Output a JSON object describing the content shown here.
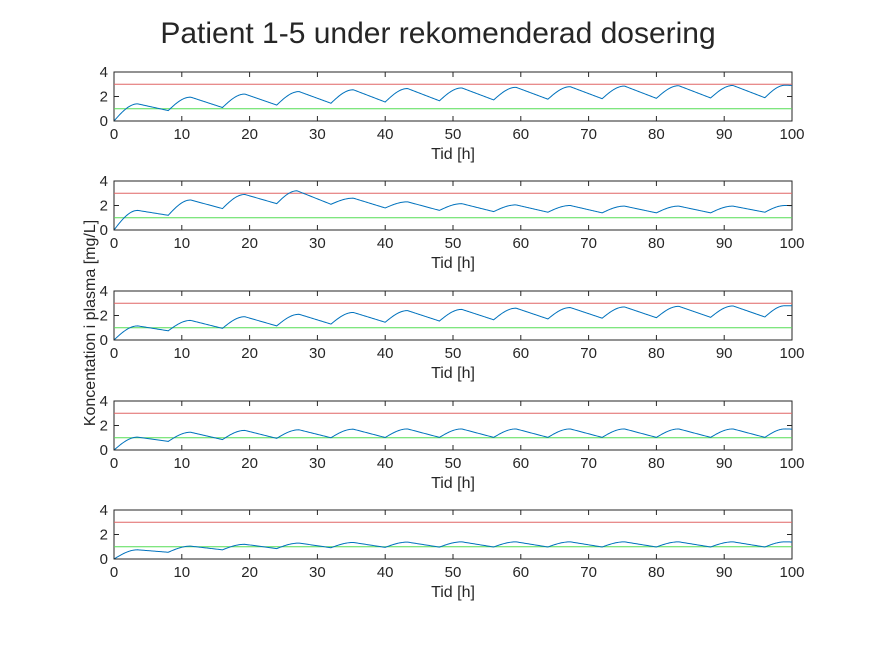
{
  "chart_data": {
    "type": "line",
    "title": "Patient 1-5 under rekomenderad dosering",
    "ylabel": "Koncentation i plasma [mg/L]",
    "xlabel": "Tid [h]",
    "xlim": [
      0,
      100
    ],
    "ylim": [
      0,
      4
    ],
    "xticks": [
      0,
      10,
      20,
      30,
      40,
      50,
      60,
      70,
      80,
      90,
      100
    ],
    "yticks": [
      0,
      2,
      4
    ],
    "dose_interval_h": 8,
    "grid": false,
    "legend": "none",
    "colors": {
      "concentration": "#0072BD",
      "upper_limit": "#E06666",
      "lower_limit": "#55DD55",
      "axes": "#262626"
    },
    "thresholds": {
      "upper": 3,
      "lower": 1
    },
    "subplots": [
      {
        "cycles": [
          {
            "start": 0,
            "trough": 0,
            "peak_t": 3.5,
            "peak": 1.4,
            "end": 0.85
          },
          {
            "start": 8,
            "trough": 0.85,
            "peak_t": 11.3,
            "peak": 1.95,
            "end": 1.1
          },
          {
            "start": 16,
            "trough": 1.1,
            "peak_t": 19.3,
            "peak": 2.2,
            "end": 1.3
          },
          {
            "start": 24,
            "trough": 1.3,
            "peak_t": 27.3,
            "peak": 2.4,
            "end": 1.45
          },
          {
            "start": 32,
            "trough": 1.45,
            "peak_t": 35.3,
            "peak": 2.55,
            "end": 1.55
          },
          {
            "start": 40,
            "trough": 1.55,
            "peak_t": 43.3,
            "peak": 2.65,
            "end": 1.65
          },
          {
            "start": 48,
            "trough": 1.65,
            "peak_t": 51.3,
            "peak": 2.7,
            "end": 1.72
          },
          {
            "start": 56,
            "trough": 1.72,
            "peak_t": 59.3,
            "peak": 2.75,
            "end": 1.78
          },
          {
            "start": 64,
            "trough": 1.78,
            "peak_t": 67.3,
            "peak": 2.8,
            "end": 1.82
          },
          {
            "start": 72,
            "trough": 1.82,
            "peak_t": 75.3,
            "peak": 2.85,
            "end": 1.85
          },
          {
            "start": 80,
            "trough": 1.85,
            "peak_t": 83.3,
            "peak": 2.88,
            "end": 1.88
          },
          {
            "start": 88,
            "trough": 1.88,
            "peak_t": 91.3,
            "peak": 2.9,
            "end": 1.9
          },
          {
            "start": 96,
            "trough": 1.9,
            "peak_t": 99.0,
            "peak": 2.92,
            "end": 2.85
          }
        ]
      },
      {
        "cycles": [
          {
            "start": 0,
            "trough": 0,
            "peak_t": 3.5,
            "peak": 1.6,
            "end": 1.2
          },
          {
            "start": 8,
            "trough": 1.2,
            "peak_t": 11.3,
            "peak": 2.45,
            "end": 1.75
          },
          {
            "start": 16,
            "trough": 1.75,
            "peak_t": 19.3,
            "peak": 2.9,
            "end": 2.15
          },
          {
            "start": 24,
            "trough": 2.15,
            "peak_t": 27.0,
            "peak": 3.2,
            "end": 2.1
          },
          {
            "start": 32,
            "trough": 2.1,
            "peak_t": 35.3,
            "peak": 2.6,
            "end": 1.8
          },
          {
            "start": 40,
            "trough": 1.8,
            "peak_t": 43.3,
            "peak": 2.3,
            "end": 1.6
          },
          {
            "start": 48,
            "trough": 1.6,
            "peak_t": 51.3,
            "peak": 2.15,
            "end": 1.5
          },
          {
            "start": 56,
            "trough": 1.5,
            "peak_t": 59.3,
            "peak": 2.05,
            "end": 1.45
          },
          {
            "start": 64,
            "trough": 1.45,
            "peak_t": 67.3,
            "peak": 2.0,
            "end": 1.4
          },
          {
            "start": 72,
            "trough": 1.4,
            "peak_t": 75.3,
            "peak": 1.95,
            "end": 1.4
          },
          {
            "start": 80,
            "trough": 1.4,
            "peak_t": 83.3,
            "peak": 1.95,
            "end": 1.4
          },
          {
            "start": 88,
            "trough": 1.4,
            "peak_t": 91.3,
            "peak": 1.95,
            "end": 1.45
          },
          {
            "start": 96,
            "trough": 1.45,
            "peak_t": 99.0,
            "peak": 2.0,
            "end": 1.95
          }
        ]
      },
      {
        "cycles": [
          {
            "start": 0,
            "trough": 0,
            "peak_t": 3.5,
            "peak": 1.15,
            "end": 0.75
          },
          {
            "start": 8,
            "trough": 0.75,
            "peak_t": 11.3,
            "peak": 1.6,
            "end": 0.95
          },
          {
            "start": 16,
            "trough": 0.95,
            "peak_t": 19.3,
            "peak": 1.9,
            "end": 1.15
          },
          {
            "start": 24,
            "trough": 1.15,
            "peak_t": 27.3,
            "peak": 2.1,
            "end": 1.3
          },
          {
            "start": 32,
            "trough": 1.3,
            "peak_t": 35.3,
            "peak": 2.25,
            "end": 1.45
          },
          {
            "start": 40,
            "trough": 1.45,
            "peak_t": 43.3,
            "peak": 2.4,
            "end": 1.55
          },
          {
            "start": 48,
            "trough": 1.55,
            "peak_t": 51.3,
            "peak": 2.5,
            "end": 1.65
          },
          {
            "start": 56,
            "trough": 1.65,
            "peak_t": 59.3,
            "peak": 2.6,
            "end": 1.72
          },
          {
            "start": 64,
            "trough": 1.72,
            "peak_t": 67.3,
            "peak": 2.65,
            "end": 1.78
          },
          {
            "start": 72,
            "trough": 1.78,
            "peak_t": 75.3,
            "peak": 2.7,
            "end": 1.82
          },
          {
            "start": 80,
            "trough": 1.82,
            "peak_t": 83.3,
            "peak": 2.75,
            "end": 1.85
          },
          {
            "start": 88,
            "trough": 1.85,
            "peak_t": 91.3,
            "peak": 2.78,
            "end": 1.88
          },
          {
            "start": 96,
            "trough": 1.88,
            "peak_t": 99.0,
            "peak": 2.8,
            "end": 2.75
          }
        ]
      },
      {
        "cycles": [
          {
            "start": 0,
            "trough": 0,
            "peak_t": 3.5,
            "peak": 1.05,
            "end": 0.7
          },
          {
            "start": 8,
            "trough": 0.7,
            "peak_t": 11.3,
            "peak": 1.45,
            "end": 0.85
          },
          {
            "start": 16,
            "trough": 0.85,
            "peak_t": 19.3,
            "peak": 1.6,
            "end": 0.95
          },
          {
            "start": 24,
            "trough": 0.95,
            "peak_t": 27.3,
            "peak": 1.65,
            "end": 1.0
          },
          {
            "start": 32,
            "trough": 1.0,
            "peak_t": 35.3,
            "peak": 1.7,
            "end": 1.02
          },
          {
            "start": 40,
            "trough": 1.02,
            "peak_t": 43.3,
            "peak": 1.72,
            "end": 1.03
          },
          {
            "start": 48,
            "trough": 1.03,
            "peak_t": 51.3,
            "peak": 1.72,
            "end": 1.03
          },
          {
            "start": 56,
            "trough": 1.03,
            "peak_t": 59.3,
            "peak": 1.72,
            "end": 1.03
          },
          {
            "start": 64,
            "trough": 1.03,
            "peak_t": 67.3,
            "peak": 1.72,
            "end": 1.03
          },
          {
            "start": 72,
            "trough": 1.03,
            "peak_t": 75.3,
            "peak": 1.72,
            "end": 1.03
          },
          {
            "start": 80,
            "trough": 1.03,
            "peak_t": 83.3,
            "peak": 1.72,
            "end": 1.03
          },
          {
            "start": 88,
            "trough": 1.03,
            "peak_t": 91.3,
            "peak": 1.72,
            "end": 1.03
          },
          {
            "start": 96,
            "trough": 1.03,
            "peak_t": 99.0,
            "peak": 1.72,
            "end": 1.65
          }
        ]
      },
      {
        "cycles": [
          {
            "start": 0,
            "trough": 0,
            "peak_t": 3.5,
            "peak": 0.75,
            "end": 0.55
          },
          {
            "start": 8,
            "trough": 0.55,
            "peak_t": 11.3,
            "peak": 1.05,
            "end": 0.75
          },
          {
            "start": 16,
            "trough": 0.75,
            "peak_t": 19.3,
            "peak": 1.2,
            "end": 0.85
          },
          {
            "start": 24,
            "trough": 0.85,
            "peak_t": 27.3,
            "peak": 1.3,
            "end": 0.92
          },
          {
            "start": 32,
            "trough": 0.92,
            "peak_t": 35.3,
            "peak": 1.35,
            "end": 0.95
          },
          {
            "start": 40,
            "trough": 0.95,
            "peak_t": 43.3,
            "peak": 1.38,
            "end": 0.97
          },
          {
            "start": 48,
            "trough": 0.97,
            "peak_t": 51.3,
            "peak": 1.4,
            "end": 0.98
          },
          {
            "start": 56,
            "trough": 0.98,
            "peak_t": 59.3,
            "peak": 1.4,
            "end": 0.98
          },
          {
            "start": 64,
            "trough": 0.98,
            "peak_t": 67.3,
            "peak": 1.4,
            "end": 0.98
          },
          {
            "start": 72,
            "trough": 0.98,
            "peak_t": 75.3,
            "peak": 1.4,
            "end": 0.98
          },
          {
            "start": 80,
            "trough": 0.98,
            "peak_t": 83.3,
            "peak": 1.4,
            "end": 0.98
          },
          {
            "start": 88,
            "trough": 0.98,
            "peak_t": 91.3,
            "peak": 1.4,
            "end": 0.98
          },
          {
            "start": 96,
            "trough": 0.98,
            "peak_t": 99.0,
            "peak": 1.4,
            "end": 1.35
          }
        ]
      }
    ]
  }
}
